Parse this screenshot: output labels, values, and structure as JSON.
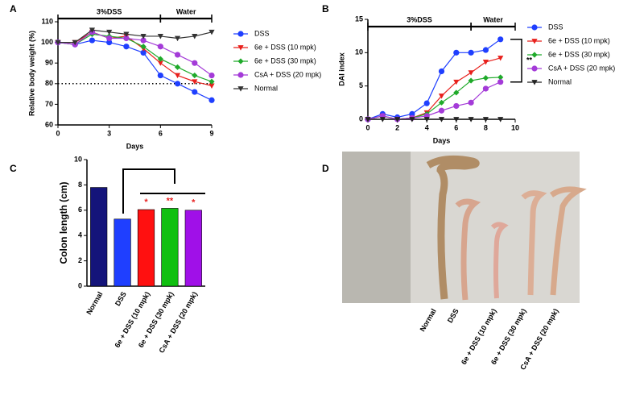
{
  "chart_data": [
    {
      "panel": "A",
      "type": "line",
      "xlabel": "Days",
      "ylabel": "Relative body weight (%)",
      "x": [
        0,
        1,
        2,
        3,
        4,
        5,
        6,
        7,
        8,
        9
      ],
      "xlim": [
        0,
        9
      ],
      "xticks": [
        0,
        3,
        6,
        9
      ],
      "ylim": [
        60,
        110
      ],
      "yticks": [
        60,
        70,
        80,
        90,
        100,
        110
      ],
      "reference_line": 80,
      "phases": [
        {
          "label": "3%DSS",
          "start": 0,
          "end": 6
        },
        {
          "label": "Water",
          "start": 6,
          "end": 9
        }
      ],
      "legend": "right",
      "series": [
        {
          "name": "DSS",
          "color": "#1f3fff",
          "marker": "circle",
          "values": [
            100,
            99,
            101,
            100,
            98,
            95,
            84,
            80,
            76,
            72
          ]
        },
        {
          "name": "6e + DSS (10 mpk)",
          "color": "#e8201c",
          "marker": "triangle-down",
          "values": [
            100,
            100,
            105,
            102,
            103,
            97,
            90,
            84,
            81,
            79
          ]
        },
        {
          "name": "6e + DSS (30 mpk)",
          "color": "#1faa2a",
          "marker": "diamond",
          "values": [
            100,
            99,
            104,
            103,
            102,
            98,
            92,
            88,
            84,
            81
          ]
        },
        {
          "name": "CsA + DSS (20 mpk)",
          "color": "#a43bd8",
          "marker": "circle",
          "values": [
            100,
            99,
            105,
            102,
            102,
            101,
            98,
            94,
            90,
            84
          ]
        },
        {
          "name": "Normal",
          "color": "#333333",
          "marker": "triangle-down",
          "values": [
            100,
            100,
            106,
            105,
            104,
            103,
            103,
            102,
            103,
            105
          ]
        }
      ]
    },
    {
      "panel": "B",
      "type": "line",
      "xlabel": "Days",
      "ylabel": "DAI index",
      "x": [
        0,
        1,
        2,
        3,
        4,
        5,
        6,
        7,
        8,
        9
      ],
      "xlim": [
        0,
        10
      ],
      "xticks": [
        0,
        2,
        4,
        6,
        8,
        10
      ],
      "ylim": [
        0,
        15
      ],
      "yticks": [
        0,
        5,
        10,
        15
      ],
      "phases": [
        {
          "label": "3%DSS",
          "start": 0,
          "end": 7
        },
        {
          "label": "Water",
          "start": 7,
          "end": 10
        }
      ],
      "annotation": "**",
      "legend": "right",
      "series": [
        {
          "name": "DSS",
          "color": "#1f3fff",
          "marker": "circle",
          "values": [
            0,
            0.8,
            0.3,
            0.8,
            2.4,
            7.2,
            10,
            10,
            10.4,
            12
          ]
        },
        {
          "name": "6e + DSS (10 mpk)",
          "color": "#e8201c",
          "marker": "triangle-down",
          "values": [
            0,
            0.5,
            0,
            0.2,
            1,
            3.5,
            5.6,
            7,
            8.6,
            9.2
          ]
        },
        {
          "name": "6e + DSS (30 mpk)",
          "color": "#1faa2a",
          "marker": "diamond",
          "values": [
            0,
            0.5,
            0,
            0.2,
            0.8,
            2.5,
            4,
            5.8,
            6.2,
            6.3
          ]
        },
        {
          "name": "CsA + DSS (20 mpk)",
          "color": "#a43bd8",
          "marker": "circle",
          "values": [
            0,
            0.5,
            0,
            0.2,
            0.5,
            1.3,
            2,
            2.5,
            4.6,
            5.6
          ]
        },
        {
          "name": "Normal",
          "color": "#222222",
          "marker": "triangle-down",
          "values": [
            0,
            0,
            0,
            0,
            0,
            0,
            0,
            0,
            0,
            0
          ]
        }
      ]
    },
    {
      "panel": "C",
      "type": "bar",
      "ylabel": "Colon length (cm)",
      "categories": [
        "Normal",
        "DSS",
        "6e + DSS (10 mpk)",
        "6e + DSS (30 mpk)",
        "CsA + DSS (20 mpk)"
      ],
      "values": [
        7.8,
        5.3,
        6.05,
        6.15,
        6.0
      ],
      "colors": [
        "#14147a",
        "#1f3fff",
        "#ff1010",
        "#10c010",
        "#a010e8"
      ],
      "stars": [
        null,
        null,
        "*",
        "**",
        "*"
      ],
      "ylim": [
        0,
        10
      ],
      "yticks": [
        0,
        2,
        4,
        6,
        8,
        10
      ]
    },
    {
      "panel": "D",
      "type": "image",
      "categories": [
        "Normal",
        "DSS",
        "6e + DSS (10 mpk)",
        "6e + DSS (30 mpk)",
        "CsA + DSS (20 mpk)"
      ]
    }
  ]
}
